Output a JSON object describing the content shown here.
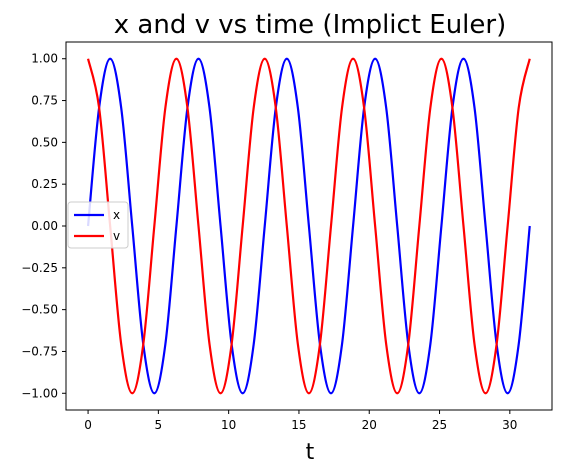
{
  "chart_data": {
    "type": "line",
    "title": "x and v vs time (Implict Euler)",
    "xlabel": "t",
    "ylabel": "",
    "xlim": [
      -1.57,
      33.0
    ],
    "ylim": [
      -1.1,
      1.1
    ],
    "xticks": [
      0,
      5,
      10,
      15,
      20,
      25,
      30
    ],
    "xtick_labels": [
      "0",
      "5",
      "10",
      "15",
      "20",
      "25",
      "30"
    ],
    "yticks": [
      -1.0,
      -0.75,
      -0.5,
      -0.25,
      0.0,
      0.25,
      0.5,
      0.75,
      1.0
    ],
    "ytick_labels": [
      "−1.00",
      "−0.75",
      "−0.50",
      "−0.25",
      "0.00",
      "0.25",
      "0.50",
      "0.75",
      "1.00"
    ],
    "grid": false,
    "legend": "center-left",
    "x": [
      0.0,
      0.785,
      1.571,
      2.356,
      3.142,
      3.927,
      4.712,
      5.498,
      6.283,
      7.069,
      7.854,
      8.639,
      9.425,
      10.21,
      10.996,
      11.781,
      12.566,
      13.352,
      14.137,
      14.923,
      15.708,
      16.493,
      17.279,
      18.064,
      18.85,
      19.635,
      20.42,
      21.206,
      21.991,
      22.777,
      23.562,
      24.347,
      25.133,
      25.918,
      26.704,
      27.489,
      28.274,
      29.06,
      29.845,
      30.631,
      31.416
    ],
    "series": [
      {
        "name": "x",
        "color": "#0000ff",
        "values": [
          0.0,
          0.707,
          1.0,
          0.707,
          0.0,
          -0.707,
          -1.0,
          -0.707,
          0.0,
          0.707,
          1.0,
          0.707,
          0.0,
          -0.707,
          -1.0,
          -0.707,
          0.0,
          0.707,
          1.0,
          0.707,
          0.0,
          -0.707,
          -1.0,
          -0.707,
          0.0,
          0.707,
          1.0,
          0.707,
          0.0,
          -0.707,
          -1.0,
          -0.707,
          0.0,
          0.707,
          1.0,
          0.707,
          0.0,
          -0.707,
          -1.0,
          -0.707,
          0.0
        ]
      },
      {
        "name": "v",
        "color": "#ff0000",
        "values": [
          1.0,
          0.707,
          0.0,
          -0.707,
          -1.0,
          -0.707,
          0.0,
          0.707,
          1.0,
          0.707,
          0.0,
          -0.707,
          -1.0,
          -0.707,
          0.0,
          0.707,
          1.0,
          0.707,
          0.0,
          -0.707,
          -1.0,
          -0.707,
          0.0,
          0.707,
          1.0,
          0.707,
          0.0,
          -0.707,
          -1.0,
          -0.707,
          0.0,
          0.707,
          1.0,
          0.707,
          0.0,
          -0.707,
          -1.0,
          -0.707,
          0.0,
          0.707,
          1.0
        ]
      }
    ]
  }
}
